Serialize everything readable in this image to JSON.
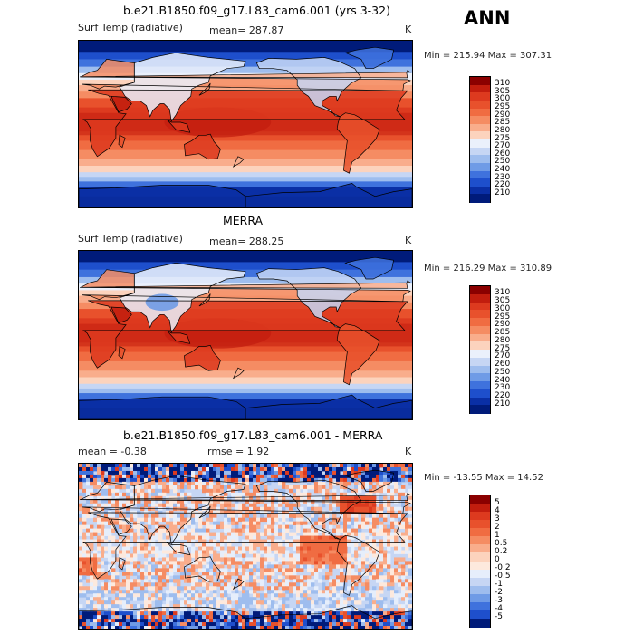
{
  "header": {
    "season": "ANN"
  },
  "panels": [
    {
      "title": "b.e21.B1850.f09_g17.L83_cam6.001 (yrs 3-32)",
      "left_text": "Surf Temp (radiative)",
      "mid_text": "mean= 287.87",
      "unit": "K",
      "minmax": "Min = 215.94 Max = 307.31",
      "colorbar_labels": [
        "310",
        "305",
        "300",
        "295",
        "290",
        "285",
        "280",
        "275",
        "270",
        "260",
        "250",
        "240",
        "230",
        "220",
        "210"
      ]
    },
    {
      "title": "MERRA",
      "left_text": "Surf Temp (radiative)",
      "mid_text": "mean= 288.25",
      "unit": "K",
      "minmax": "Min = 216.29 Max = 310.89",
      "colorbar_labels": [
        "310",
        "305",
        "300",
        "295",
        "290",
        "285",
        "280",
        "275",
        "270",
        "260",
        "250",
        "240",
        "230",
        "220",
        "210"
      ]
    },
    {
      "title": "b.e21.B1850.f09_g17.L83_cam6.001 - MERRA",
      "left_text": "mean =   -0.38",
      "mid_text": "rmse =   1.92",
      "unit": "K",
      "minmax": "Min = -13.55 Max =  14.52",
      "colorbar_labels": [
        "5",
        "4",
        "3",
        "2",
        "1",
        "0.5",
        "0.2",
        "0",
        "-0.2",
        "-0.5",
        "-1",
        "-2",
        "-3",
        "-4",
        "-5"
      ]
    }
  ],
  "colors": {
    "abs_scale": [
      "#8b0000",
      "#c21d0e",
      "#dd3a1f",
      "#e8512c",
      "#f06c42",
      "#f58c63",
      "#f9ad8c",
      "#fcd3bd",
      "#eaf0fb",
      "#c6d6f4",
      "#9ebdee",
      "#6f9be6",
      "#3f72dd",
      "#1e4fcc",
      "#0a2fa5",
      "#001b7a"
    ],
    "diff_scale": [
      "#8b0000",
      "#c21d0e",
      "#dd3a1f",
      "#e8512c",
      "#f06c42",
      "#f58c63",
      "#f9ad8c",
      "#fcd3bd",
      "#fde9dd",
      "#e6eefb",
      "#c6d6f4",
      "#9ebdee",
      "#6f9be6",
      "#3f72dd",
      "#1e4fcc",
      "#001b7a"
    ]
  },
  "chart_data": [
    {
      "type": "heatmap",
      "title": "b.e21.B1850.f09_g17.L83_cam6.001 (yrs 3-32)",
      "variable": "Surf Temp (radiative)",
      "units": "K",
      "mean": 287.87,
      "min": 215.94,
      "max": 307.31,
      "contour_levels": [
        210,
        220,
        230,
        240,
        250,
        260,
        270,
        275,
        280,
        285,
        290,
        295,
        300,
        305,
        310
      ]
    },
    {
      "type": "heatmap",
      "title": "MERRA",
      "variable": "Surf Temp (radiative)",
      "units": "K",
      "mean": 288.25,
      "min": 216.29,
      "max": 310.89,
      "contour_levels": [
        210,
        220,
        230,
        240,
        250,
        260,
        270,
        275,
        280,
        285,
        290,
        295,
        300,
        305,
        310
      ]
    },
    {
      "type": "heatmap",
      "title": "b.e21.B1850.f09_g17.L83_cam6.001 - MERRA",
      "units": "K",
      "mean": -0.38,
      "rmse": 1.92,
      "min": -13.55,
      "max": 14.52,
      "contour_levels": [
        -5,
        -4,
        -3,
        -2,
        -1,
        -0.5,
        -0.2,
        0,
        0.2,
        0.5,
        1,
        2,
        3,
        4,
        5
      ]
    }
  ]
}
